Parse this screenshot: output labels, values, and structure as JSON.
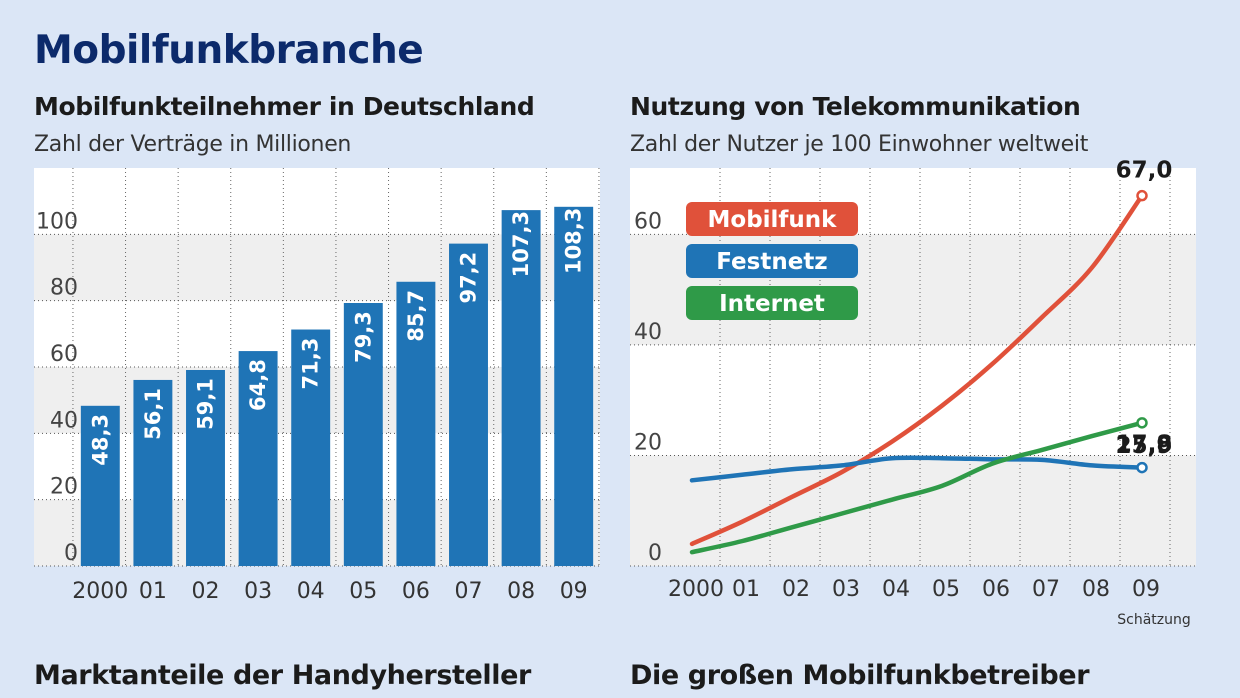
{
  "page_title": "Mobilfunkbranche",
  "bottom": {
    "left_heading": "Marktanteile der Handyhersteller",
    "right_heading": "Die großen Mobilfunkbetreiber"
  },
  "chart_data": [
    {
      "type": "bar",
      "title": "Mobilfunkteilnehmer in Deutschland",
      "subtitle": "Zahl der Verträge in Millionen",
      "categories": [
        "2000",
        "01",
        "02",
        "03",
        "04",
        "05",
        "06",
        "07",
        "08",
        "09"
      ],
      "values": [
        48.3,
        56.1,
        59.1,
        64.8,
        71.3,
        79.3,
        85.7,
        97.2,
        107.3,
        108.3
      ],
      "value_labels": [
        "48,3",
        "56,1",
        "59,1",
        "64,8",
        "71,3",
        "79,3",
        "85,7",
        "97,2",
        "107,3",
        "108,3"
      ],
      "yticks": [
        0,
        20,
        40,
        60,
        80,
        100
      ],
      "ylim": [
        0,
        120
      ],
      "bar_color": "#1f74b6",
      "grid": true
    },
    {
      "type": "line",
      "title": "Nutzung von Telekommunikation",
      "subtitle": "Zahl der Nutzer je 100 Einwohner weltweit",
      "categories": [
        "2000",
        "01",
        "02",
        "03",
        "04",
        "05",
        "06",
        "07",
        "08",
        "09"
      ],
      "x_note": "Schätzung",
      "yticks": [
        0,
        20,
        40,
        60
      ],
      "ylim": [
        0,
        72
      ],
      "grid": true,
      "legend_position": "top-left",
      "series": [
        {
          "name": "Mobilfunk",
          "color": "#e0513a",
          "values": [
            4,
            8,
            12.5,
            17,
            22.5,
            29,
            36.5,
            45,
            54,
            67.0
          ],
          "end_label": "67,0"
        },
        {
          "name": "Festnetz",
          "color": "#1f74b6",
          "values": [
            15.5,
            16.5,
            17.5,
            18.2,
            19.5,
            19.5,
            19.3,
            19.2,
            18.2,
            17.8
          ],
          "end_label": "17,8"
        },
        {
          "name": "Internet",
          "color": "#2f9a48",
          "values": [
            2.5,
            4.5,
            7,
            9.5,
            12,
            14.5,
            18.5,
            21,
            23.5,
            25.9
          ],
          "end_label": "25,9"
        }
      ]
    }
  ]
}
